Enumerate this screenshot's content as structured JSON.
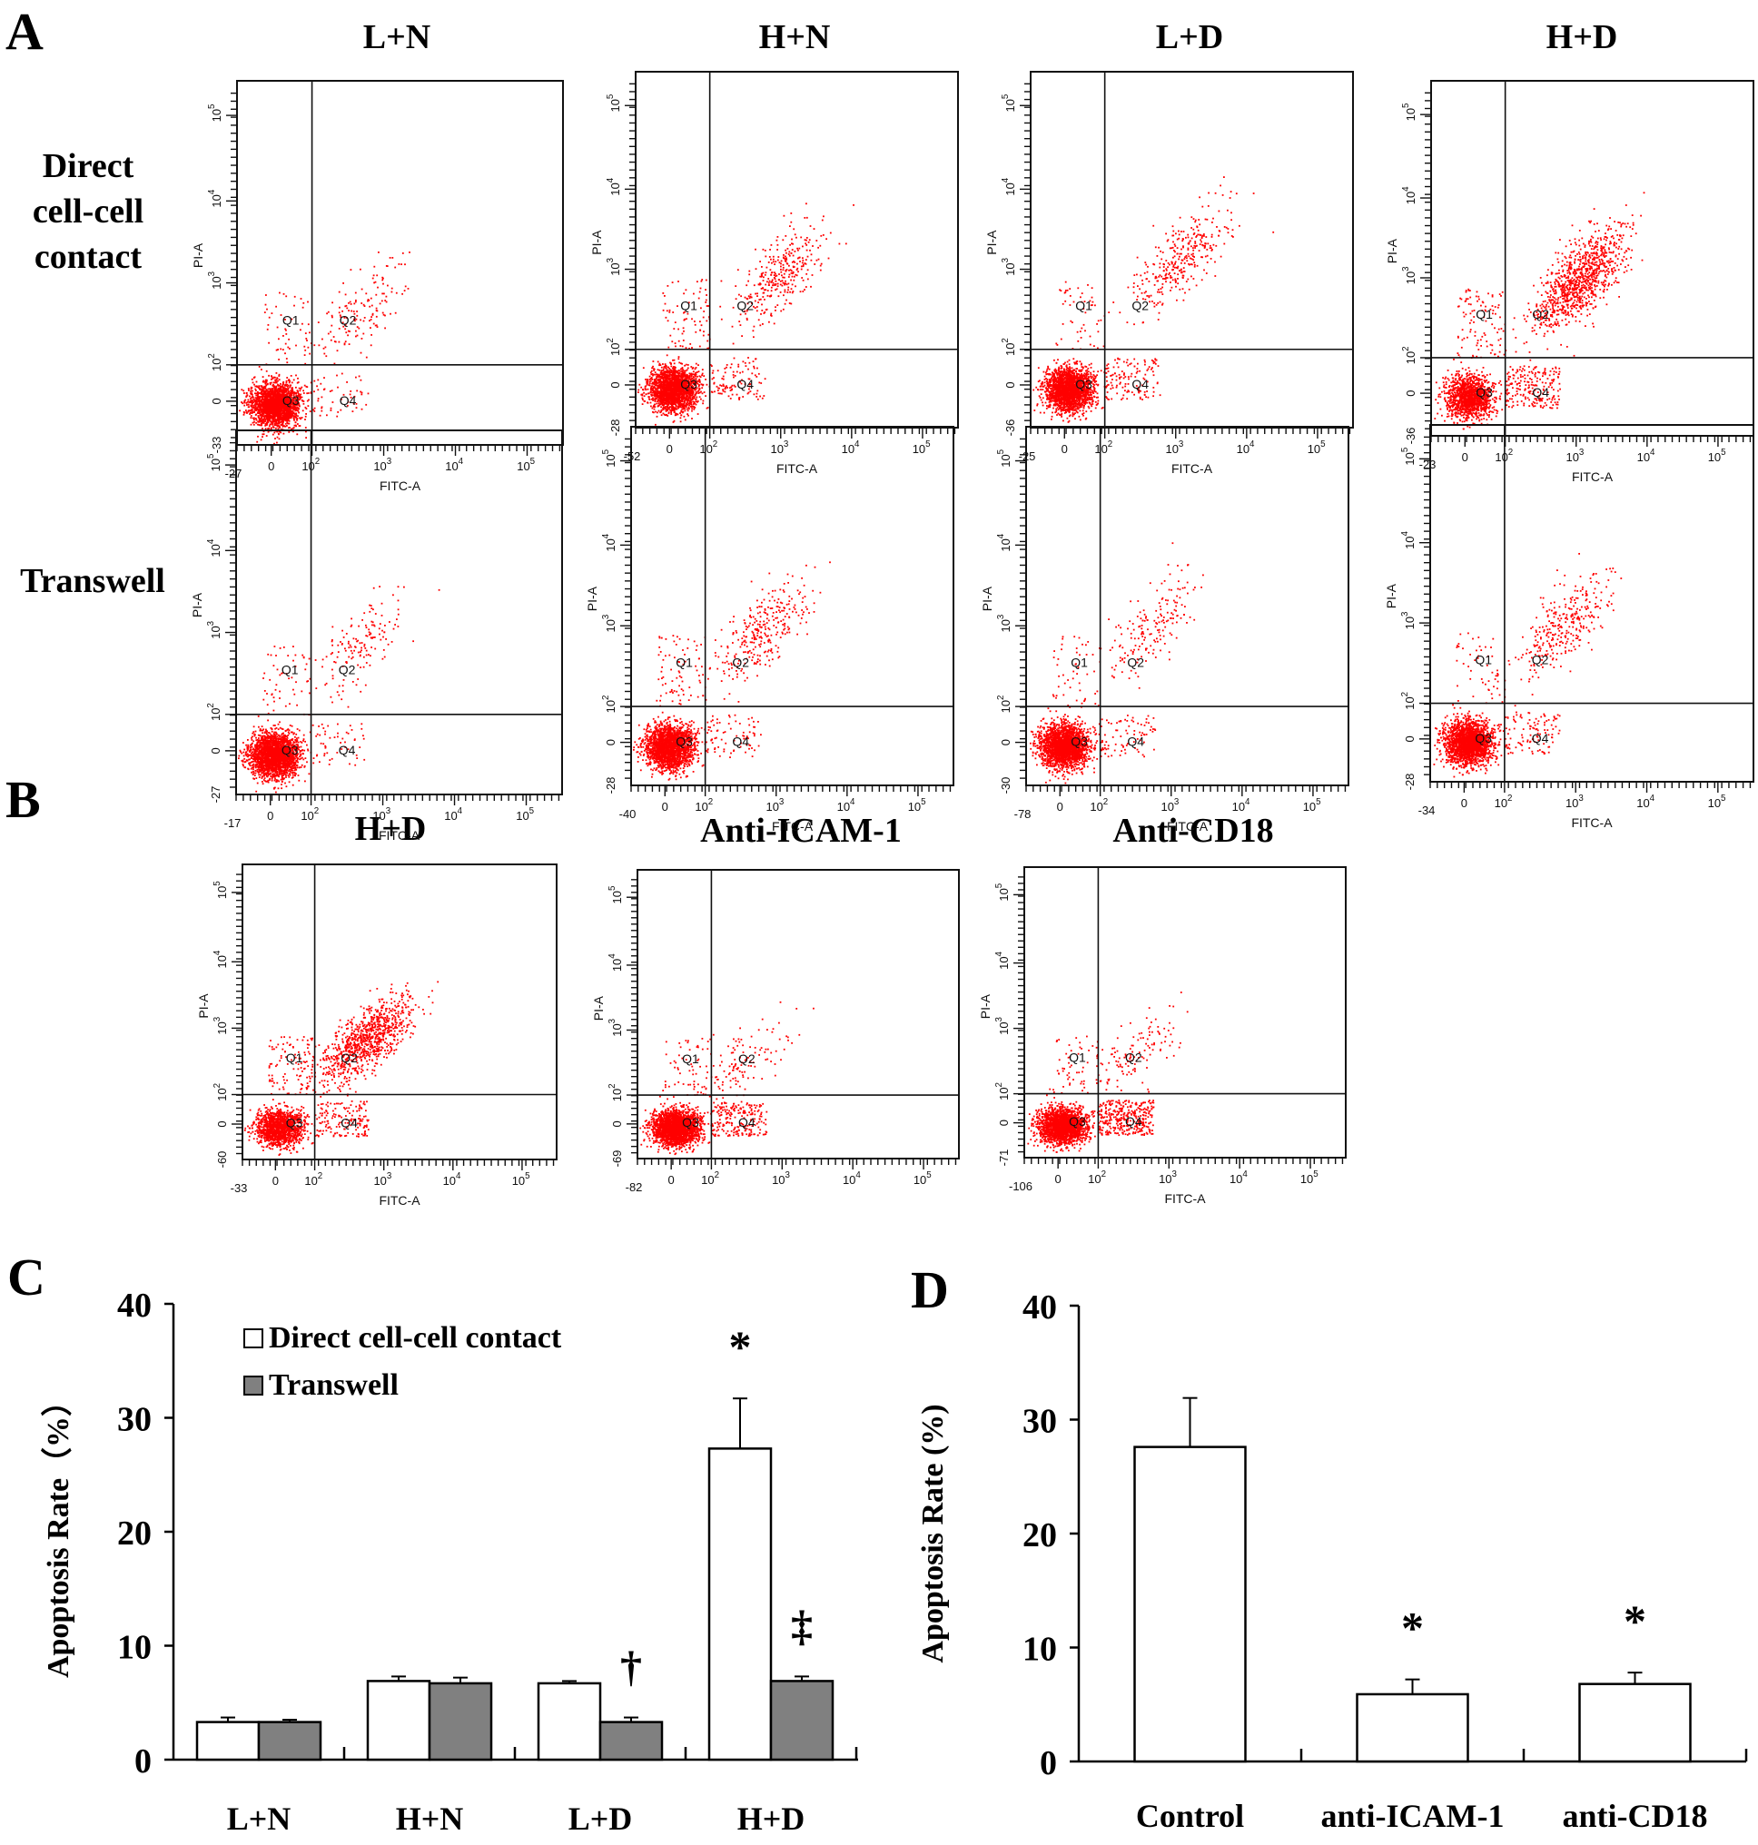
{
  "panels": {
    "A": {
      "letter": "A"
    },
    "B": {
      "letter": "B"
    },
    "C": {
      "letter": "C"
    },
    "D": {
      "letter": "D"
    }
  },
  "panel_a": {
    "column_titles": [
      "L+N",
      "H+N",
      "L+D",
      "H+D"
    ],
    "row_labels": [
      {
        "lines": [
          "Direct",
          "cell-cell",
          "contact"
        ]
      },
      {
        "lines": [
          "Transwell"
        ]
      }
    ]
  },
  "panel_b": {
    "column_titles": [
      "H+D",
      "Anti-ICAM-1",
      "Anti-CD18"
    ]
  },
  "flow_common": {
    "x_axis_label": "FITC-A",
    "y_axis_label": "PI-A",
    "quadrants": [
      "Q1",
      "Q2",
      "Q3",
      "Q4"
    ],
    "x_ticks": [
      "0",
      "10^2",
      "10^3",
      "10^4",
      "10^5"
    ],
    "y_ticks": [
      "0",
      "10^2",
      "10^3",
      "10^4",
      "10^5"
    ],
    "dot_color": "#ff0000"
  },
  "flow_plots": [
    {
      "id": "a-direct-ln",
      "x_min": "-27",
      "y_min": "-33",
      "x_extra": "",
      "show_xlabel": true,
      "pop": {
        "q3": 0.9,
        "q2": 0.06,
        "q1": 0.02,
        "q4": 0.02,
        "q2cx": 0.8,
        "q2cy": 0.65
      }
    },
    {
      "id": "a-direct-hn",
      "x_min": "-52",
      "y_min": "-28",
      "x_extra": "",
      "show_xlabel": true,
      "pop": {
        "q3": 0.8,
        "q2": 0.13,
        "q1": 0.03,
        "q4": 0.04,
        "q2cx": 1.2,
        "q2cy": 0.9
      }
    },
    {
      "id": "a-direct-ld",
      "x_min": "-25",
      "y_min": "-36",
      "x_extra": "",
      "show_xlabel": true,
      "pop": {
        "q3": 0.8,
        "q2": 0.13,
        "q1": 0.02,
        "q4": 0.05,
        "q2cx": 1.3,
        "q2cy": 1.1
      }
    },
    {
      "id": "a-direct-hd",
      "x_min": "-23",
      "y_min": "-36",
      "x_extra": "",
      "show_xlabel": true,
      "pop": {
        "q3": 0.5,
        "q2": 0.38,
        "q1": 0.04,
        "q4": 0.08,
        "q2cx": 1.25,
        "q2cy": 0.95
      }
    },
    {
      "id": "a-transwell-ln",
      "x_min": "-17",
      "y_min": "-27",
      "x_extra": "010^1",
      "show_xlabel": true,
      "pop": {
        "q3": 0.9,
        "q2": 0.06,
        "q1": 0.02,
        "q4": 0.02,
        "q2cx": 0.8,
        "q2cy": 0.8
      }
    },
    {
      "id": "a-transwell-hn",
      "x_min": "-40",
      "y_min": "-28",
      "x_extra": "",
      "show_xlabel": true,
      "pop": {
        "q3": 0.82,
        "q2": 0.12,
        "q1": 0.03,
        "q4": 0.03,
        "q2cx": 1.0,
        "q2cy": 0.95
      }
    },
    {
      "id": "a-transwell-ld",
      "x_min": "-78",
      "y_min": "-30",
      "x_extra": "",
      "show_xlabel": true,
      "pop": {
        "q3": 0.88,
        "q2": 0.07,
        "q1": 0.02,
        "q4": 0.03,
        "q2cx": 0.9,
        "q2cy": 1.0
      }
    },
    {
      "id": "a-transwell-hd",
      "x_min": "-34",
      "y_min": "-28",
      "x_extra": "",
      "show_xlabel": true,
      "pop": {
        "q3": 0.82,
        "q2": 0.12,
        "q1": 0.02,
        "q4": 0.04,
        "q2cx": 1.0,
        "q2cy": 0.95
      }
    },
    {
      "id": "b-hd",
      "x_min": "-33",
      "y_min": "-60",
      "x_extra": "",
      "show_xlabel": true,
      "pop": {
        "q3": 0.55,
        "q2": 0.35,
        "q1": 0.04,
        "q4": 0.06,
        "q2cx": 0.9,
        "q2cy": 0.8
      }
    },
    {
      "id": "b-anti-icam1",
      "x_min": "-82",
      "y_min": "-69",
      "x_extra": "",
      "show_xlabel": false,
      "pop": {
        "q3": 0.85,
        "q2": 0.05,
        "q1": 0.02,
        "q4": 0.08,
        "q2cx": 0.5,
        "q2cy": 0.5
      }
    },
    {
      "id": "b-anti-cd18",
      "x_min": "-106",
      "y_min": "-71",
      "x_extra": "",
      "show_xlabel": true,
      "pop": {
        "q3": 0.8,
        "q2": 0.05,
        "q1": 0.02,
        "q4": 0.13,
        "q2cx": 0.6,
        "q2cy": 0.6
      }
    }
  ],
  "chart_data": [
    {
      "type": "bar",
      "panel": "C",
      "title": "",
      "xlabel": "",
      "ylabel": "Apoptosis Rate（%）",
      "ylim": [
        0,
        40
      ],
      "yticks": [
        "0",
        "10",
        "20",
        "30",
        "40"
      ],
      "grid": false,
      "legend_position": "top-left",
      "categories": [
        "L+N",
        "H+N",
        "L+D",
        "H+D"
      ],
      "series": [
        {
          "name": "Direct cell-cell contact",
          "color": "#ffffff",
          "values": [
            3.3,
            6.9,
            6.7,
            27.3
          ],
          "errors": [
            0.4,
            0.4,
            0.2,
            4.4
          ],
          "annotations": [
            "",
            "",
            "",
            "*"
          ]
        },
        {
          "name": "Transwell",
          "color": "#808080",
          "values": [
            3.3,
            6.7,
            3.3,
            6.9
          ],
          "errors": [
            0.2,
            0.5,
            0.4,
            0.4
          ],
          "annotations": [
            "",
            "",
            "†",
            "‡"
          ]
        }
      ]
    },
    {
      "type": "bar",
      "panel": "D",
      "title": "",
      "xlabel": "",
      "ylabel": "Apoptosis Rate (%)",
      "ylim": [
        0,
        40
      ],
      "yticks": [
        "0",
        "10",
        "20",
        "30",
        "40"
      ],
      "grid": false,
      "categories": [
        "Control",
        "anti-ICAM-1",
        "anti-CD18"
      ],
      "series": [
        {
          "name": "Apoptosis Rate",
          "color": "#ffffff",
          "values": [
            27.6,
            5.9,
            6.8
          ],
          "errors": [
            4.3,
            1.3,
            1.0
          ],
          "annotations": [
            "",
            "*",
            "*"
          ]
        }
      ]
    }
  ]
}
